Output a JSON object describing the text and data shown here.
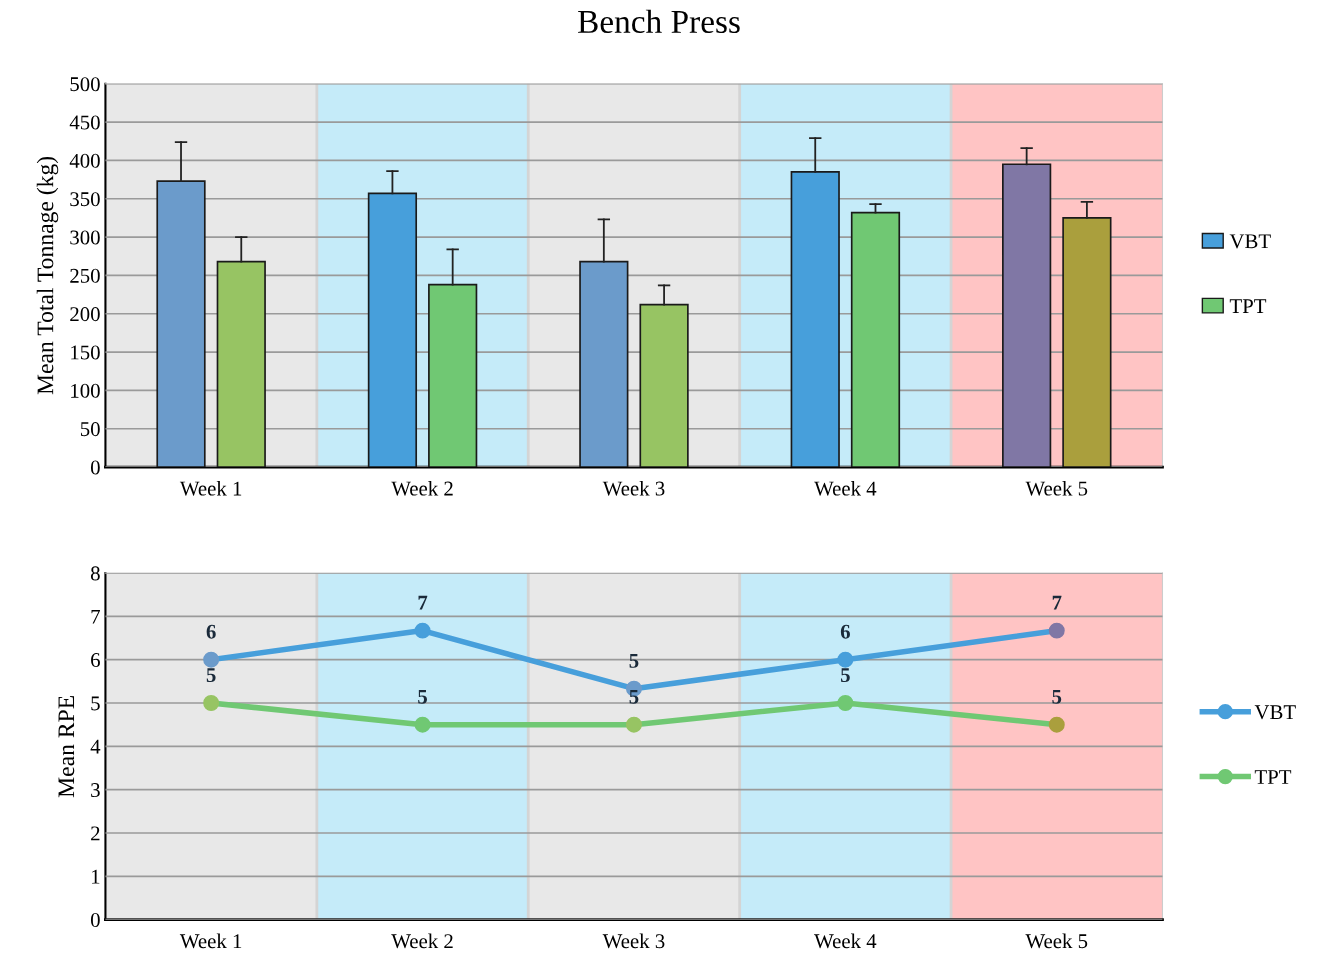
{
  "chart_data": [
    {
      "type": "bar",
      "title": "Bench Press",
      "ylabel": "Mean Total Tonnage (kg)",
      "categories": [
        "Week 1",
        "Week 2",
        "Week 3",
        "Week 4",
        "Week 5"
      ],
      "series": [
        {
          "name": "VBT",
          "color": "#479fdb",
          "colors": [
            "#6b9bcb",
            "#479fdb",
            "#6b9bcb",
            "#479fdb",
            "#8077a5"
          ],
          "values": [
            373,
            357,
            268,
            385,
            395
          ],
          "errors": [
            [
              373,
              424
            ],
            [
              357,
              386
            ],
            [
              268,
              323
            ],
            [
              385,
              429
            ],
            [
              395,
              416
            ]
          ]
        },
        {
          "name": "TPT",
          "color": "#70c873",
          "colors": [
            "#97c463",
            "#70c873",
            "#97c463",
            "#70c873",
            "#aa9f3d"
          ],
          "values": [
            268,
            238,
            212,
            332,
            325
          ],
          "errors": [
            [
              268,
              300
            ],
            [
              238,
              284
            ],
            [
              212,
              237
            ],
            [
              332,
              343
            ],
            [
              325,
              346
            ]
          ]
        }
      ],
      "bands": [
        {
          "axis": "x",
          "from": "Week 1",
          "to": "Week 1",
          "color": "#e8e8e8"
        },
        {
          "axis": "x",
          "from": "Week 2",
          "to": "Week 2",
          "color": "#c5ebf9"
        },
        {
          "axis": "x",
          "from": "Week 3",
          "to": "Week 3",
          "color": "#e8e8e8"
        },
        {
          "axis": "x",
          "from": "Week 4",
          "to": "Week 4",
          "color": "#c5ebf9"
        },
        {
          "axis": "x",
          "from": "Week 5",
          "to": "Week 5",
          "color": "#ffc4c4"
        }
      ],
      "ylim": [
        0,
        500
      ],
      "yticks": [
        0,
        50,
        100,
        150,
        200,
        250,
        300,
        350,
        400,
        450,
        500
      ],
      "grid": "y",
      "legend": "right"
    },
    {
      "type": "line",
      "ylabel": "Mean RPE",
      "categories": [
        "Week 1",
        "Week 2",
        "Week 3",
        "Week 4",
        "Week 5"
      ],
      "series": [
        {
          "name": "VBT",
          "color": "#479fdb",
          "colors": [
            "#6b9bcb",
            "#479fdb",
            "#6b9bcb",
            "#479fdb",
            "#8077a5"
          ],
          "values": [
            6,
            6.67,
            5.33,
            6,
            6.67
          ],
          "value_labels": [
            "6",
            "7",
            "5",
            "6",
            "7"
          ]
        },
        {
          "name": "TPT",
          "color": "#70c873",
          "colors": [
            "#97c463",
            "#70c873",
            "#97c463",
            "#70c873",
            "#aa9f3d"
          ],
          "values": [
            5,
            4.5,
            4.5,
            5,
            4.5
          ],
          "value_labels": [
            "5",
            "5",
            "5",
            "5",
            "5"
          ]
        }
      ],
      "bands": [
        {
          "axis": "x",
          "from": "Week 1",
          "to": "Week 1",
          "color": "#e8e8e8"
        },
        {
          "axis": "x",
          "from": "Week 2",
          "to": "Week 2",
          "color": "#c5ebf9"
        },
        {
          "axis": "x",
          "from": "Week 3",
          "to": "Week 3",
          "color": "#e8e8e8"
        },
        {
          "axis": "x",
          "from": "Week 4",
          "to": "Week 4",
          "color": "#c5ebf9"
        },
        {
          "axis": "x",
          "from": "Week 5",
          "to": "Week 5",
          "color": "#ffc4c4"
        }
      ],
      "ylim": [
        0,
        8
      ],
      "yticks": [
        0,
        1,
        2,
        3,
        4,
        5,
        6,
        7,
        8
      ],
      "grid": "y",
      "legend": "right",
      "marker": "circle",
      "line_style": "solid"
    }
  ]
}
